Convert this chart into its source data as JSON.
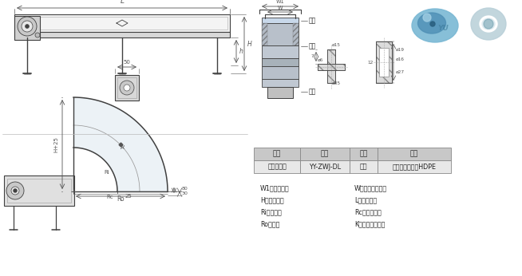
{
  "bg_color": "#ffffff",
  "line_color": "#404040",
  "dim_color": "#555555",
  "table_header_bg": "#c8c8c8",
  "table_row_bg": "#e8e8e8",
  "table_border": "#888888",
  "table": {
    "headers": [
      "名称",
      "规格",
      "颜色",
      "材质"
    ],
    "rows": [
      [
        "转弯机导轮",
        "YY-ZWJ-DL",
        "白色",
        "超高分子聚乙烯HDPE"
      ]
    ]
  },
  "legend": [
    [
      "W1：机身宽度",
      "W：皮带有效宽度"
    ],
    [
      "H：机身高度",
      "L：机身长度"
    ],
    [
      "Ri：内半径",
      "Rc：中心半径"
    ],
    [
      "Ro：外径",
      "K：输送台面厚度"
    ]
  ]
}
